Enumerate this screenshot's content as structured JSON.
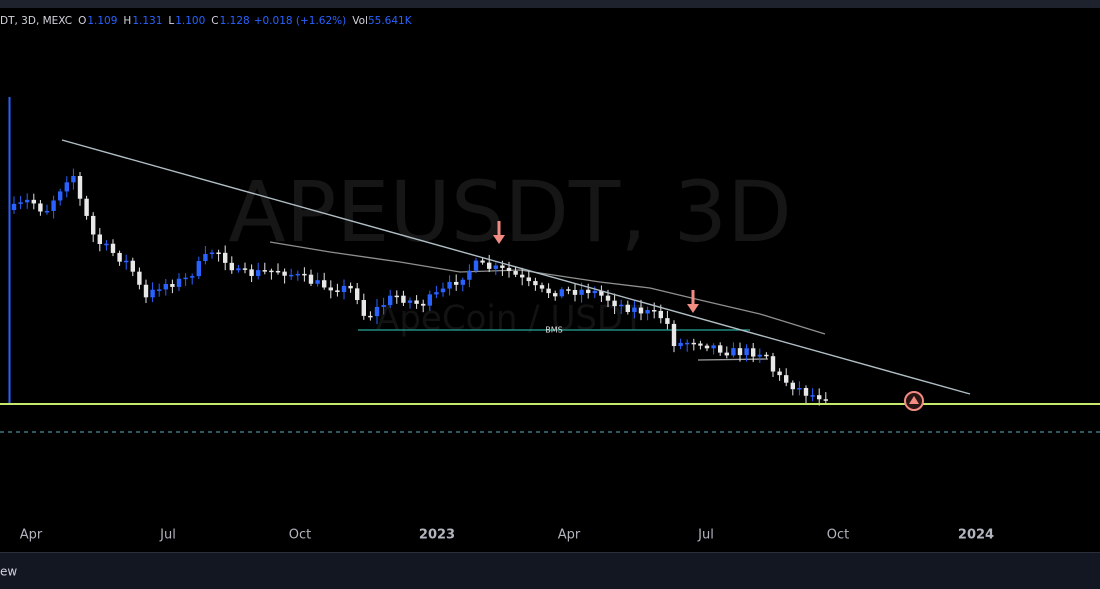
{
  "legend": {
    "symbol": "DT, 3D, MEXC",
    "open_label": "O",
    "open": "1.109",
    "high_label": "H",
    "high": "1.131",
    "low_label": "L",
    "low": "1.100",
    "close_label": "C",
    "close": "1.128",
    "change": "+0.018 (+1.62%)",
    "volume_label": "Vol",
    "volume": "55.641K"
  },
  "x_axis": [
    "Apr",
    "Jul",
    "Oct",
    "2023",
    "Apr",
    "Jul",
    "Oct",
    "2024"
  ],
  "watermark": {
    "title": "APEUSDT, 3D",
    "subtitle": "ApeCoin / USDT"
  },
  "annotation": "BMS",
  "footer": "ew"
}
